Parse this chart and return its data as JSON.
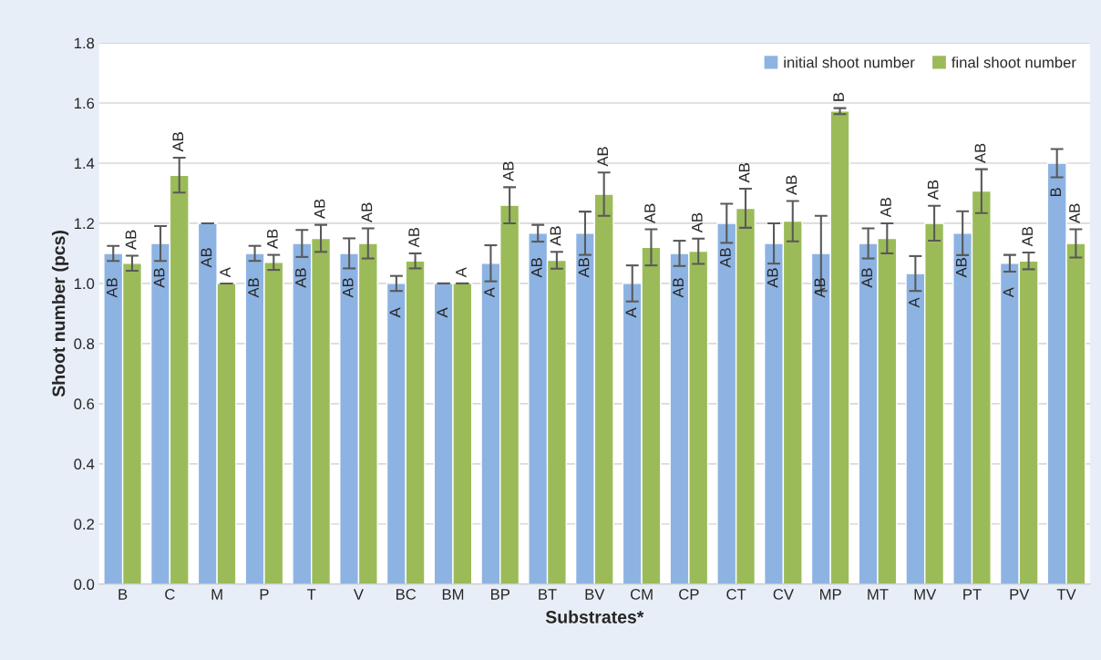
{
  "chart_data": {
    "type": "bar",
    "xlabel": "Substrates*",
    "ylabel": "Shoot number (pcs)",
    "categories": [
      "B",
      "C",
      "M",
      "P",
      "T",
      "V",
      "BC",
      "BM",
      "BP",
      "BT",
      "BV",
      "CM",
      "CP",
      "CT",
      "CV",
      "MP",
      "MT",
      "MV",
      "PT",
      "PV",
      "TV"
    ],
    "series": [
      {
        "name": "initial shoot number",
        "color": "#8db3e2",
        "values": [
          1.1,
          1.133,
          1.2,
          1.1,
          1.133,
          1.1,
          1.0,
          1.0,
          1.067,
          1.167,
          1.167,
          1.0,
          1.1,
          1.2,
          1.133,
          1.1,
          1.133,
          1.033,
          1.167,
          1.067,
          1.4
        ],
        "errors": [
          0.025,
          0.058,
          0,
          0.025,
          0.045,
          0.05,
          0.025,
          0,
          0.06,
          0.028,
          0.072,
          0.06,
          0.042,
          0.065,
          0.067,
          0.125,
          0.05,
          0.058,
          0.073,
          0.028,
          0.047
        ],
        "value_labels": [
          "AB",
          "AB",
          "AB",
          "AB",
          "AB",
          "AB",
          "A",
          "A",
          "A",
          "AB",
          "AB",
          "A",
          "AB",
          "AB",
          "AB",
          "AB",
          "AB",
          "A",
          "AB",
          "A",
          "B"
        ]
      },
      {
        "name": "final shoot number",
        "color": "#9bbb59",
        "values": [
          1.067,
          1.36,
          1.0,
          1.07,
          1.15,
          1.133,
          1.075,
          1.0,
          1.26,
          1.077,
          1.297,
          1.12,
          1.107,
          1.25,
          1.207,
          1.573,
          1.15,
          1.2,
          1.307,
          1.075,
          1.133
        ],
        "errors": [
          0.025,
          0.058,
          0,
          0.025,
          0.045,
          0.05,
          0.025,
          0,
          0.06,
          0.028,
          0.072,
          0.06,
          0.042,
          0.065,
          0.067,
          0.01,
          0.05,
          0.058,
          0.073,
          0.028,
          0.047
        ],
        "value_labels": [
          "AB",
          "AB",
          "A",
          "AB",
          "AB",
          "AB",
          "AB",
          "A",
          "AB",
          "AB",
          "AB",
          "AB",
          "AB",
          "AB",
          "AB",
          "B",
          "AB",
          "AB",
          "AB",
          "AB",
          "AB"
        ]
      }
    ],
    "ylim": [
      0,
      1.8
    ],
    "yticks": [
      {
        "value": 0,
        "label": "0.0"
      },
      {
        "value": 0.2,
        "label": "0.2"
      },
      {
        "value": 0.4,
        "label": "0.4"
      },
      {
        "value": 0.6,
        "label": "0.6"
      },
      {
        "value": 0.8,
        "label": "0.8"
      },
      {
        "value": 1.0,
        "label": "1.0"
      },
      {
        "value": 1.2,
        "label": "1.2"
      },
      {
        "value": 1.4,
        "label": "1.4"
      },
      {
        "value": 1.6,
        "label": "1.6"
      },
      {
        "value": 1.8,
        "label": "1.8"
      }
    ],
    "grid": "y",
    "legend": "top right"
  }
}
